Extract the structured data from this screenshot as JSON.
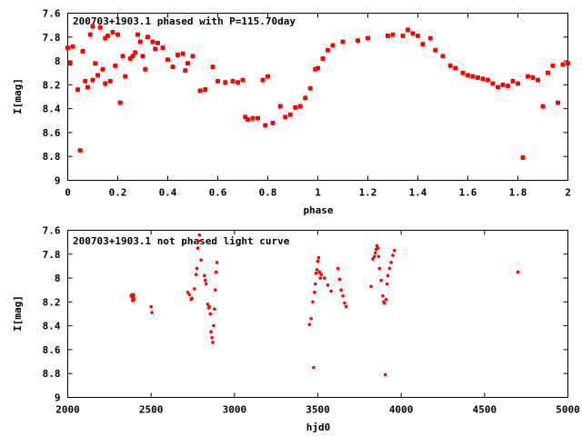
{
  "chart_data": [
    {
      "type": "scatter",
      "title": "200703+1903.1 phased with P=115.70day",
      "xlabel": "phase",
      "ylabel": "I[mag]",
      "xlim": [
        0,
        2
      ],
      "ylim": [
        7.6,
        9
      ],
      "y_inverted": true,
      "xticks": [
        "0",
        "0.2",
        "0.4",
        "0.6",
        "0.8",
        "1",
        "1.2",
        "1.4",
        "1.6",
        "1.8",
        "2"
      ],
      "yticks": [
        "7.6",
        "7.8",
        "8",
        "8.2",
        "8.4",
        "8.6",
        "8.8",
        "9"
      ],
      "grid": false,
      "marker_color": "#ff0000",
      "series": [
        {
          "x": [
            0.0,
            0.01,
            0.02,
            0.04,
            0.05,
            0.06,
            0.07,
            0.08,
            0.09,
            0.1,
            0.1,
            0.11,
            0.12,
            0.13,
            0.14,
            0.15,
            0.15,
            0.16,
            0.17,
            0.18,
            0.19,
            0.2,
            0.21,
            0.22,
            0.23,
            0.25,
            0.26,
            0.27,
            0.28,
            0.29,
            0.3,
            0.31,
            0.32,
            0.34,
            0.35,
            0.36,
            0.38,
            0.4,
            0.42,
            0.44,
            0.46,
            0.47,
            0.48,
            0.5,
            0.53,
            0.55,
            0.58,
            0.6,
            0.63,
            0.66,
            0.68,
            0.7,
            0.71,
            0.72,
            0.74,
            0.76,
            0.78,
            0.79,
            0.8,
            0.82,
            0.85,
            0.87,
            0.89,
            0.91,
            0.93,
            0.95,
            0.97,
            0.99,
            1.0,
            1.02,
            1.04,
            1.06,
            1.1,
            1.16,
            1.2,
            1.28,
            1.3,
            1.34,
            1.36,
            1.38,
            1.4,
            1.42,
            1.45,
            1.47,
            1.5,
            1.53,
            1.55,
            1.58,
            1.6,
            1.62,
            1.64,
            1.66,
            1.68,
            1.7,
            1.72,
            1.74,
            1.76,
            1.78,
            1.8,
            1.82,
            1.84,
            1.86,
            1.88,
            1.9,
            1.92,
            1.94,
            1.96,
            1.98,
            2.0
          ],
          "y": [
            7.89,
            8.02,
            7.88,
            8.24,
            8.75,
            7.92,
            8.17,
            8.22,
            7.78,
            7.71,
            8.16,
            8.02,
            8.12,
            7.72,
            8.07,
            8.19,
            7.81,
            7.79,
            8.17,
            7.76,
            8.04,
            7.78,
            8.35,
            7.96,
            8.13,
            7.98,
            7.96,
            7.93,
            7.78,
            7.84,
            7.96,
            8.07,
            7.8,
            7.84,
            7.9,
            7.85,
            7.89,
            7.99,
            8.05,
            7.95,
            7.94,
            8.08,
            8.02,
            7.96,
            8.25,
            8.24,
            8.05,
            8.17,
            8.18,
            8.17,
            8.18,
            8.16,
            8.47,
            8.49,
            8.48,
            8.48,
            8.16,
            8.54,
            8.13,
            8.52,
            8.38,
            8.47,
            8.45,
            8.39,
            8.38,
            8.31,
            8.23,
            8.07,
            8.06,
            7.98,
            7.91,
            7.87,
            7.84,
            7.83,
            7.81,
            7.79,
            7.78,
            7.79,
            7.74,
            7.77,
            7.79,
            7.86,
            7.81,
            7.91,
            7.96,
            8.04,
            8.06,
            8.1,
            8.12,
            8.13,
            8.14,
            8.15,
            8.16,
            8.19,
            8.22,
            8.2,
            8.21,
            8.17,
            8.19,
            8.81,
            8.13,
            8.14,
            8.16,
            8.38,
            8.1,
            8.04,
            8.35,
            8.03,
            8.02
          ]
        }
      ]
    },
    {
      "type": "scatter",
      "title": "200703+1903.1 not phased light curve",
      "xlabel": "hjd0",
      "ylabel": "I[mag]",
      "xlim": [
        2000,
        5000
      ],
      "ylim": [
        7.6,
        9
      ],
      "y_inverted": true,
      "xticks": [
        "2000",
        "2500",
        "3000",
        "3500",
        "4000",
        "4500",
        "5000"
      ],
      "yticks": [
        "7.6",
        "7.8",
        "8",
        "8.2",
        "8.4",
        "8.6",
        "8.8",
        "9"
      ],
      "grid": false,
      "marker_color": "#ff0000",
      "series": [
        {
          "x": [
            2380,
            2385,
            2388,
            2390,
            2392,
            2395,
            2398,
            2500,
            2505,
            2720,
            2730,
            2740,
            2745,
            2760,
            2770,
            2775,
            2780,
            2785,
            2790,
            2800,
            2820,
            2825,
            2830,
            2840,
            2845,
            2850,
            2855,
            2860,
            2865,
            2870,
            2875,
            2880,
            2885,
            2890,
            2895,
            3450,
            3460,
            3470,
            3475,
            3480,
            3485,
            3490,
            3495,
            3500,
            3505,
            3510,
            3515,
            3520,
            3540,
            3560,
            3580,
            3620,
            3630,
            3640,
            3650,
            3660,
            3670,
            3820,
            3830,
            3840,
            3845,
            3850,
            3855,
            3860,
            3865,
            3870,
            3880,
            3890,
            3895,
            3900,
            3905,
            3910,
            3915,
            3920,
            3930,
            3940,
            3950,
            3960,
            4700
          ],
          "y": [
            8.15,
            8.14,
            8.17,
            8.19,
            8.16,
            8.14,
            8.18,
            8.24,
            8.29,
            8.12,
            8.14,
            8.18,
            8.17,
            8.09,
            7.97,
            7.92,
            7.75,
            7.69,
            7.64,
            7.85,
            7.98,
            8.02,
            8.05,
            8.22,
            8.25,
            8.24,
            8.3,
            8.45,
            8.5,
            8.54,
            8.4,
            8.26,
            8.1,
            7.95,
            7.87,
            8.39,
            8.34,
            8.2,
            8.75,
            8.12,
            8.05,
            7.96,
            7.93,
            7.86,
            7.83,
            7.95,
            8.0,
            7.97,
            8.0,
            8.06,
            8.11,
            7.92,
            8.01,
            8.1,
            8.15,
            8.21,
            8.24,
            8.07,
            7.84,
            7.82,
            7.79,
            7.76,
            7.73,
            7.75,
            7.82,
            7.92,
            8.02,
            8.15,
            8.2,
            8.21,
            8.81,
            8.18,
            8.05,
            7.98,
            7.92,
            7.87,
            7.81,
            7.77,
            7.95
          ]
        }
      ]
    }
  ]
}
